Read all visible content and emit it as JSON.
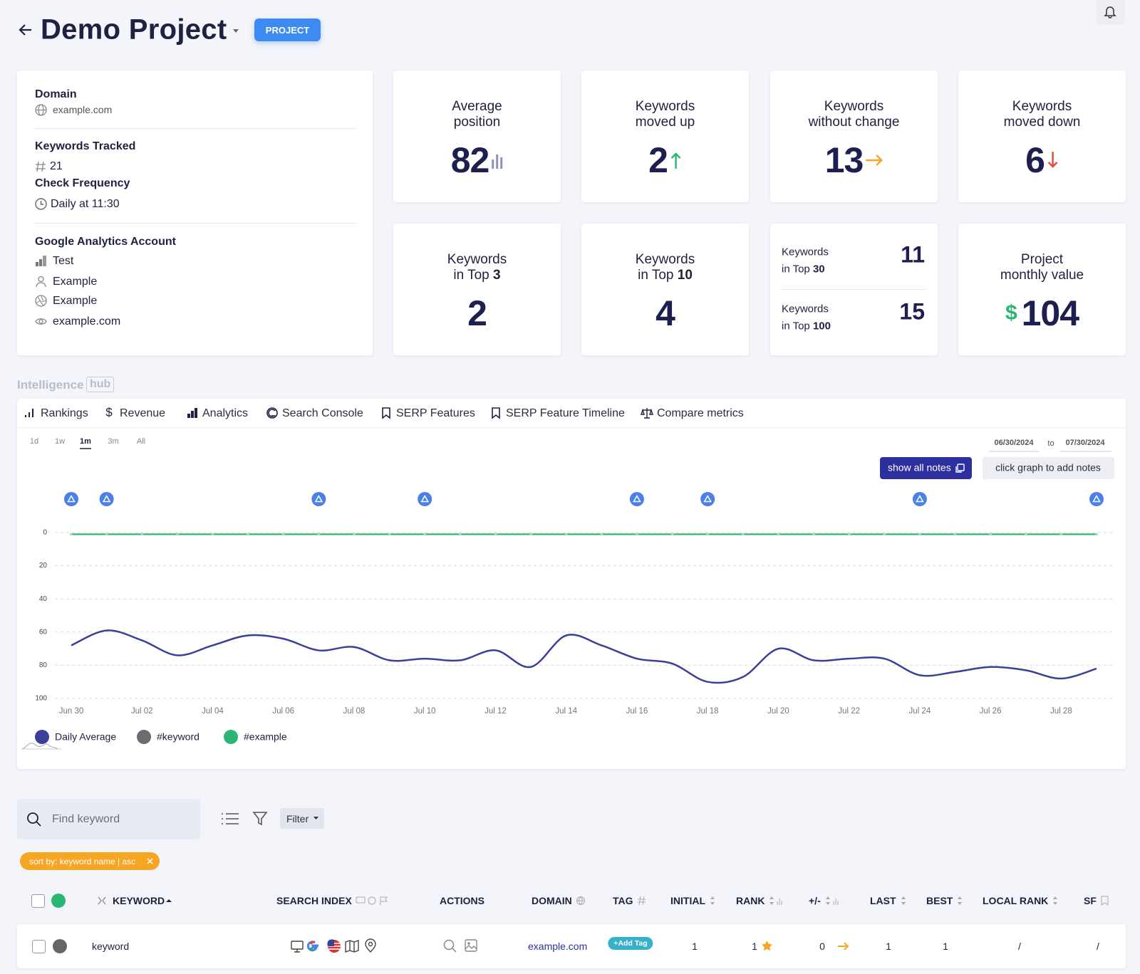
{
  "header": {
    "title": "Demo Project",
    "badge": "PROJECT"
  },
  "info": {
    "domain_label": "Domain",
    "domain": "example.com",
    "keywords_label": "Keywords Tracked",
    "keywords": 21,
    "frequency_label": "Check Frequency",
    "frequency": "Daily at 11:30",
    "ga_label": "Google Analytics Account",
    "ga": [
      "Test",
      "Example",
      "Example",
      "example.com"
    ]
  },
  "stats": [
    {
      "label": [
        "Average",
        "position"
      ],
      "value": 82
    },
    {
      "label": [
        "Keywords",
        "moved up"
      ],
      "value": 2
    },
    {
      "label": [
        "Keywords",
        "without change"
      ],
      "value": 13
    },
    {
      "label": [
        "Keywords",
        "moved down"
      ],
      "value": 6
    },
    {
      "label": [
        "Keywords",
        "in Top"
      ],
      "top": 3,
      "value": 2
    },
    {
      "label": [
        "Keywords",
        "in Top"
      ],
      "top": 10,
      "value": 4
    },
    {
      "rows": [
        {
          "label": [
            "Keywords",
            "in Top"
          ],
          "top": 30,
          "value": 11
        },
        {
          "label": [
            "Keywords",
            "in Top"
          ],
          "top": 100,
          "value": 15
        }
      ]
    },
    {
      "label": [
        "Project",
        "monthly value"
      ],
      "currency": "$",
      "value": 104
    }
  ],
  "hub": {
    "title": "Intelligence",
    "badge": "hub",
    "tabs": [
      "Rankings",
      "Revenue",
      "Analytics",
      "Search Console",
      "SERP Features",
      "SERP Feature Timeline",
      "Compare metrics"
    ]
  },
  "chart_data": {
    "type": "line",
    "ranges": [
      "1d",
      "1w",
      "1m",
      "3m",
      "All"
    ],
    "date_from": "06/30/2024",
    "date_sep": "to",
    "date_to": "07/30/2024",
    "buttons": [
      "show all notes",
      "click graph to add notes"
    ],
    "categories": [
      "Jun 30",
      null,
      "Jul 02",
      null,
      "Jul 04",
      null,
      "Jul 06",
      null,
      "Jul 08",
      null,
      "Jul 10",
      null,
      "Jul 12",
      null,
      "Jul 14",
      null,
      "Jul 16",
      null,
      "Jul 18",
      null,
      "Jul 20",
      null,
      "Jul 22",
      null,
      "Jul 24",
      null,
      "Jul 26",
      null,
      "Jul 28",
      null
    ],
    "series": [
      {
        "name": "Daily Average",
        "color": "#3b3f9a",
        "values": [
          68,
          59,
          65,
          74,
          68,
          62,
          64,
          71,
          69,
          77,
          76,
          77,
          71,
          81,
          62,
          68,
          76,
          79,
          90,
          87,
          70,
          77,
          76,
          76,
          86,
          84,
          81,
          83,
          88,
          82
        ]
      },
      {
        "name": "#keyword",
        "color": "#6b6b70",
        "values": [
          1,
          1,
          1,
          1,
          1,
          1,
          1,
          1,
          1,
          1,
          1,
          1,
          1,
          1,
          1,
          1,
          1,
          1,
          1,
          1,
          1,
          1,
          1,
          1,
          1,
          1,
          1,
          1,
          1,
          1
        ]
      },
      {
        "name": "#example",
        "color": "#2bb673",
        "values": [
          1,
          1,
          1,
          1,
          1,
          1,
          1,
          1,
          1,
          1,
          1,
          1,
          1,
          1,
          1,
          1,
          1,
          1,
          1,
          1,
          1,
          1,
          1,
          1,
          1,
          1,
          1,
          1,
          1,
          1
        ]
      }
    ],
    "ylim": [
      100,
      0
    ],
    "yticks": [
      0,
      20,
      40,
      60,
      80,
      100
    ],
    "grid": true
  },
  "toolbar": {
    "search_placeholder": "Find keyword",
    "filter": "Filter",
    "sort_chip": "sort by: keyword name | asc"
  },
  "table": {
    "headers": [
      "KEYWORD",
      "SEARCH INDEX",
      "ACTIONS",
      "DOMAIN",
      "TAG",
      "INITIAL",
      "RANK",
      "+/-",
      "LAST",
      "BEST",
      "LOCAL RANK",
      "SF"
    ],
    "rows": [
      {
        "keyword": "keyword",
        "domain": "example.com",
        "tag": "+Add Tag",
        "initial": 1,
        "rank": 1,
        "change": 0,
        "last": 1,
        "best": 1,
        "local_rank": "/",
        "sf": "/"
      }
    ]
  }
}
